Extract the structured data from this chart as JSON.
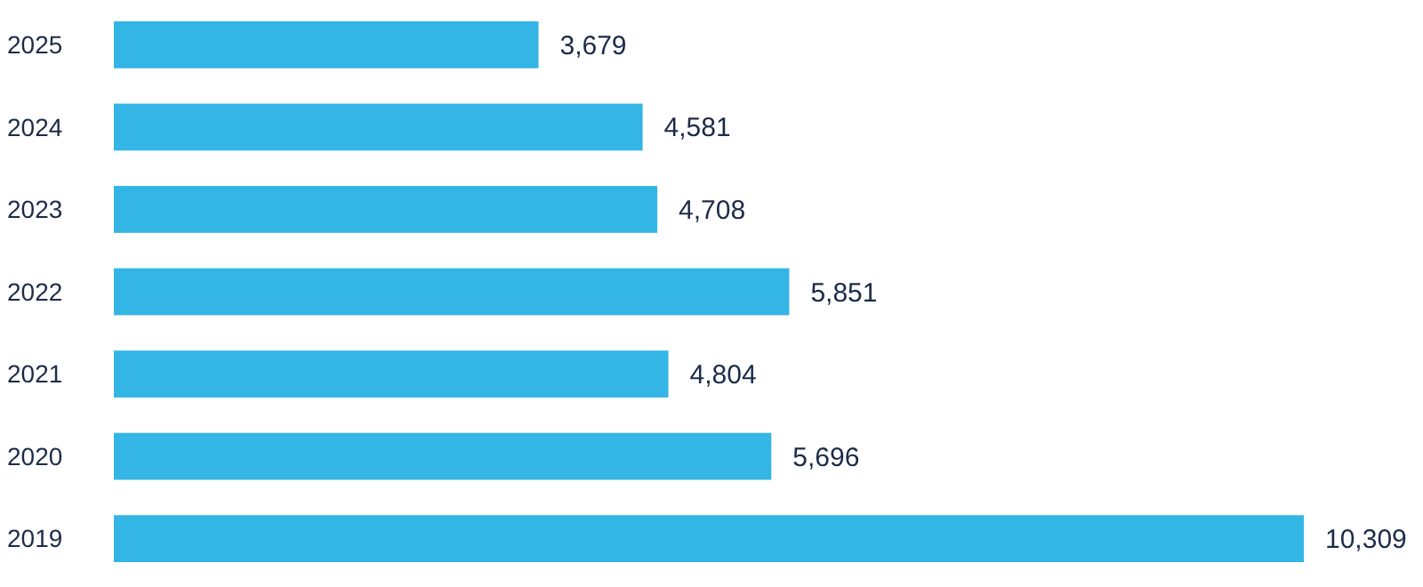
{
  "chart_data": {
    "type": "bar",
    "orientation": "horizontal",
    "categories": [
      "2025",
      "2024",
      "2023",
      "2022",
      "2021",
      "2020",
      "2019"
    ],
    "values": [
      3679,
      4581,
      4708,
      5851,
      4804,
      5696,
      10309
    ],
    "color": "#33b5e6",
    "data_labels": true,
    "value_labels": [
      "3,679",
      "4,581",
      "4,708",
      "5,851",
      "4,804",
      "5,696",
      "10,309"
    ]
  }
}
